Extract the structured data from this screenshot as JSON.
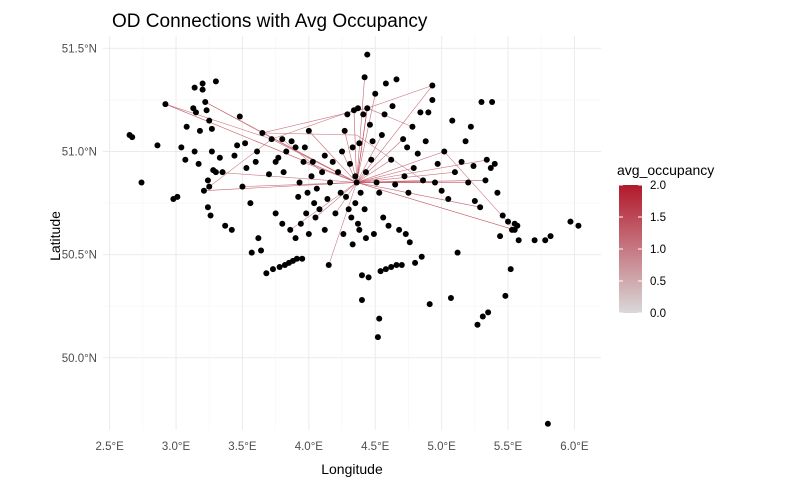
{
  "chart_data": {
    "type": "scatter",
    "title": "OD Connections with Avg Occupancy",
    "xlabel": "Longitude",
    "ylabel": "Latitude",
    "xlim": [
      2.45,
      6.2
    ],
    "ylim": [
      49.65,
      51.56
    ],
    "x_ticks": [
      {
        "value": 2.5,
        "label": "2.5°E"
      },
      {
        "value": 3.0,
        "label": "3.0°E"
      },
      {
        "value": 3.5,
        "label": "3.5°E"
      },
      {
        "value": 4.0,
        "label": "4.0°E"
      },
      {
        "value": 4.5,
        "label": "4.5°E"
      },
      {
        "value": 5.0,
        "label": "5.0°E"
      },
      {
        "value": 5.5,
        "label": "5.5°E"
      },
      {
        "value": 6.0,
        "label": "6.0°E"
      }
    ],
    "y_ticks": [
      {
        "value": 50.0,
        "label": "50.0°N"
      },
      {
        "value": 50.5,
        "label": "50.5°N"
      },
      {
        "value": 51.0,
        "label": "51.0°N"
      },
      {
        "value": 51.5,
        "label": "51.5°N"
      }
    ],
    "grid": true,
    "legend": {
      "title": "avg_occupancy",
      "position": "right",
      "min": 0.0,
      "max": 2.0,
      "ticks": [
        {
          "value": 2.0,
          "label": "2.0"
        },
        {
          "value": 1.5,
          "label": "1.5"
        },
        {
          "value": 1.0,
          "label": "1.0"
        },
        {
          "value": 0.5,
          "label": "0.5"
        },
        {
          "value": 0.0,
          "label": "0.0"
        }
      ],
      "color_low": "#d9d9d9",
      "color_high": "#b2182b"
    },
    "point_color": "#000000",
    "hub": [
      4.36,
      50.85
    ],
    "points": [
      [
        2.65,
        51.08
      ],
      [
        2.67,
        51.07
      ],
      [
        2.74,
        50.85
      ],
      [
        2.86,
        51.03
      ],
      [
        2.92,
        51.23
      ],
      [
        2.98,
        50.77
      ],
      [
        3.01,
        50.78
      ],
      [
        3.04,
        51.02
      ],
      [
        3.07,
        50.96
      ],
      [
        3.08,
        51.12
      ],
      [
        3.13,
        51.21
      ],
      [
        3.14,
        51.0
      ],
      [
        3.14,
        51.31
      ],
      [
        3.15,
        51.19
      ],
      [
        3.17,
        50.94
      ],
      [
        3.18,
        51.1
      ],
      [
        3.2,
        51.33
      ],
      [
        3.2,
        51.3
      ],
      [
        3.21,
        50.81
      ],
      [
        3.22,
        51.24
      ],
      [
        3.23,
        51.2
      ],
      [
        3.24,
        50.86
      ],
      [
        3.24,
        50.73
      ],
      [
        3.25,
        50.83
      ],
      [
        3.25,
        51.15
      ],
      [
        3.26,
        50.69
      ],
      [
        3.27,
        51.0
      ],
      [
        3.27,
        51.11
      ],
      [
        3.28,
        50.91
      ],
      [
        3.3,
        51.34
      ],
      [
        3.3,
        50.9
      ],
      [
        3.33,
        50.97
      ],
      [
        3.35,
        50.9
      ],
      [
        3.37,
        50.64
      ],
      [
        3.42,
        50.62
      ],
      [
        3.44,
        50.98
      ],
      [
        3.46,
        51.03
      ],
      [
        3.48,
        51.17
      ],
      [
        3.5,
        50.83
      ],
      [
        3.52,
        51.04
      ],
      [
        3.53,
        50.92
      ],
      [
        3.56,
        50.75
      ],
      [
        3.57,
        50.51
      ],
      [
        3.6,
        50.95
      ],
      [
        3.61,
        51.0
      ],
      [
        3.62,
        50.58
      ],
      [
        3.64,
        50.52
      ],
      [
        3.65,
        51.09
      ],
      [
        3.68,
        50.41
      ],
      [
        3.7,
        50.89
      ],
      [
        3.72,
        51.06
      ],
      [
        3.73,
        50.43
      ],
      [
        3.75,
        50.95
      ],
      [
        3.75,
        50.7
      ],
      [
        3.77,
        50.97
      ],
      [
        3.78,
        50.44
      ],
      [
        3.8,
        51.06
      ],
      [
        3.8,
        50.65
      ],
      [
        3.81,
        50.9
      ],
      [
        3.82,
        50.45
      ],
      [
        3.83,
        51.0
      ],
      [
        3.85,
        50.46
      ],
      [
        3.86,
        50.62
      ],
      [
        3.87,
        51.05
      ],
      [
        3.88,
        50.47
      ],
      [
        3.9,
        51.02
      ],
      [
        3.9,
        50.58
      ],
      [
        3.91,
        50.48
      ],
      [
        3.92,
        50.78
      ],
      [
        3.93,
        50.85
      ],
      [
        3.94,
        50.65
      ],
      [
        3.95,
        50.48
      ],
      [
        3.96,
        50.95
      ],
      [
        3.97,
        51.02
      ],
      [
        3.98,
        50.7
      ],
      [
        3.99,
        50.8
      ],
      [
        4.0,
        50.6
      ],
      [
        4.0,
        51.1
      ],
      [
        4.02,
        50.88
      ],
      [
        4.03,
        50.95
      ],
      [
        4.04,
        50.75
      ],
      [
        4.05,
        50.68
      ],
      [
        4.06,
        50.82
      ],
      [
        4.08,
        50.72
      ],
      [
        4.1,
        50.9
      ],
      [
        4.12,
        50.98
      ],
      [
        4.12,
        50.62
      ],
      [
        4.14,
        50.77
      ],
      [
        4.15,
        50.45
      ],
      [
        4.16,
        50.85
      ],
      [
        4.18,
        50.95
      ],
      [
        4.2,
        50.7
      ],
      [
        4.22,
        50.9
      ],
      [
        4.24,
        50.8
      ],
      [
        4.25,
        51.0
      ],
      [
        4.26,
        50.6
      ],
      [
        4.27,
        51.1
      ],
      [
        4.28,
        50.78
      ],
      [
        4.29,
        51.18
      ],
      [
        4.3,
        50.72
      ],
      [
        4.31,
        50.94
      ],
      [
        4.32,
        50.68
      ],
      [
        4.33,
        50.55
      ],
      [
        4.33,
        51.02
      ],
      [
        4.34,
        51.2
      ],
      [
        4.35,
        50.75
      ],
      [
        4.35,
        50.88
      ],
      [
        4.36,
        50.85
      ],
      [
        4.37,
        50.65
      ],
      [
        4.37,
        51.21
      ],
      [
        4.38,
        51.04
      ],
      [
        4.38,
        50.62
      ],
      [
        4.39,
        50.8
      ],
      [
        4.4,
        50.4
      ],
      [
        4.4,
        50.28
      ],
      [
        4.41,
        51.18
      ],
      [
        4.42,
        50.72
      ],
      [
        4.42,
        51.36
      ],
      [
        4.43,
        50.58
      ],
      [
        4.43,
        50.9
      ],
      [
        4.44,
        51.47
      ],
      [
        4.44,
        51.21
      ],
      [
        4.45,
        50.39
      ],
      [
        4.46,
        51.13
      ],
      [
        4.47,
        50.96
      ],
      [
        4.48,
        51.05
      ],
      [
        4.49,
        50.6
      ],
      [
        4.5,
        51.28
      ],
      [
        4.51,
        50.85
      ],
      [
        4.52,
        50.1
      ],
      [
        4.53,
        50.19
      ],
      [
        4.53,
        50.8
      ],
      [
        4.54,
        50.42
      ],
      [
        4.55,
        51.08
      ],
      [
        4.56,
        50.68
      ],
      [
        4.57,
        51.18
      ],
      [
        4.58,
        50.43
      ],
      [
        4.58,
        51.33
      ],
      [
        4.6,
        50.64
      ],
      [
        4.62,
        50.96
      ],
      [
        4.62,
        50.44
      ],
      [
        4.63,
        51.22
      ],
      [
        4.65,
        50.84
      ],
      [
        4.66,
        51.35
      ],
      [
        4.66,
        50.45
      ],
      [
        4.68,
        50.62
      ],
      [
        4.7,
        50.45
      ],
      [
        4.71,
        51.06
      ],
      [
        4.72,
        50.88
      ],
      [
        4.73,
        50.6
      ],
      [
        4.74,
        51.02
      ],
      [
        4.75,
        50.8
      ],
      [
        4.76,
        50.56
      ],
      [
        4.78,
        51.12
      ],
      [
        4.79,
        50.92
      ],
      [
        4.8,
        50.46
      ],
      [
        4.82,
        50.99
      ],
      [
        4.84,
        51.19
      ],
      [
        4.85,
        50.49
      ],
      [
        4.86,
        50.86
      ],
      [
        4.88,
        51.05
      ],
      [
        4.9,
        51.19
      ],
      [
        4.91,
        50.26
      ],
      [
        4.93,
        51.32
      ],
      [
        4.93,
        51.25
      ],
      [
        4.95,
        50.85
      ],
      [
        4.97,
        50.94
      ],
      [
        5.0,
        50.81
      ],
      [
        5.02,
        51.0
      ],
      [
        5.05,
        50.77
      ],
      [
        5.07,
        50.29
      ],
      [
        5.08,
        51.15
      ],
      [
        5.1,
        50.9
      ],
      [
        5.12,
        50.51
      ],
      [
        5.15,
        50.95
      ],
      [
        5.18,
        51.05
      ],
      [
        5.2,
        50.85
      ],
      [
        5.22,
        51.12
      ],
      [
        5.24,
        50.93
      ],
      [
        5.25,
        50.76
      ],
      [
        5.27,
        50.16
      ],
      [
        5.29,
        50.73
      ],
      [
        5.3,
        51.24
      ],
      [
        5.31,
        50.2
      ],
      [
        5.33,
        50.86
      ],
      [
        5.34,
        50.96
      ],
      [
        5.35,
        50.22
      ],
      [
        5.37,
        50.92
      ],
      [
        5.38,
        51.24
      ],
      [
        5.4,
        50.94
      ],
      [
        5.42,
        50.8
      ],
      [
        5.44,
        50.59
      ],
      [
        5.46,
        50.69
      ],
      [
        5.48,
        50.3
      ],
      [
        5.5,
        50.66
      ],
      [
        5.52,
        50.43
      ],
      [
        5.53,
        50.62
      ],
      [
        5.55,
        50.65
      ],
      [
        5.57,
        50.64
      ],
      [
        5.58,
        50.57
      ],
      [
        5.7,
        50.57
      ],
      [
        5.78,
        50.57
      ],
      [
        5.8,
        49.68
      ],
      [
        5.82,
        50.59
      ],
      [
        5.97,
        50.66
      ],
      [
        6.03,
        50.64
      ],
      [
        5.55,
        50.62
      ]
    ],
    "connections": [
      [
        [
          4.36,
          50.85
        ],
        [
          2.92,
          51.23
        ],
        1.6
      ],
      [
        [
          4.36,
          50.85
        ],
        [
          3.22,
          51.24
        ],
        1.4
      ],
      [
        [
          4.36,
          50.85
        ],
        [
          3.21,
          50.81
        ],
        1.5
      ],
      [
        [
          4.36,
          50.85
        ],
        [
          3.5,
          50.83
        ],
        1.3
      ],
      [
        [
          4.36,
          50.85
        ],
        [
          3.72,
          51.06
        ],
        1.6
      ],
      [
        [
          4.36,
          50.85
        ],
        [
          3.65,
          51.09
        ],
        1.2
      ],
      [
        [
          4.36,
          50.85
        ],
        [
          4.44,
          51.21
        ],
        1.8
      ],
      [
        [
          4.36,
          50.85
        ],
        [
          4.42,
          51.36
        ],
        1.5
      ],
      [
        [
          4.36,
          50.85
        ],
        [
          4.34,
          51.2
        ],
        1.6
      ],
      [
        [
          4.36,
          50.85
        ],
        [
          4.5,
          51.28
        ],
        1.4
      ],
      [
        [
          4.36,
          50.85
        ],
        [
          4.93,
          51.32
        ],
        1.3
      ],
      [
        [
          4.36,
          50.85
        ],
        [
          5.02,
          51.0
        ],
        1.5
      ],
      [
        [
          4.36,
          50.85
        ],
        [
          5.33,
          50.86
        ],
        1.7
      ],
      [
        [
          4.36,
          50.85
        ],
        [
          5.35,
          50.96
        ],
        1.4
      ],
      [
        [
          4.36,
          50.85
        ],
        [
          5.55,
          50.62
        ],
        1.8
      ],
      [
        [
          4.36,
          50.85
        ],
        [
          5.29,
          50.73
        ],
        1.5
      ],
      [
        [
          4.36,
          50.85
        ],
        [
          4.86,
          50.86
        ],
        1.3
      ],
      [
        [
          4.36,
          50.85
        ],
        [
          4.71,
          51.06
        ],
        1.4
      ],
      [
        [
          4.36,
          50.85
        ],
        [
          4.05,
          50.68
        ],
        1.2
      ],
      [
        [
          4.36,
          50.85
        ],
        [
          3.86,
          50.62
        ],
        1.1
      ],
      [
        [
          4.36,
          50.85
        ],
        [
          4.15,
          50.45
        ],
        1.2
      ],
      [
        [
          4.36,
          50.85
        ],
        [
          4.62,
          50.96
        ],
        1.5
      ],
      [
        [
          4.36,
          50.85
        ],
        [
          4.0,
          51.1
        ],
        1.4
      ],
      [
        [
          4.36,
          50.85
        ],
        [
          4.25,
          51.0
        ],
        1.5
      ],
      [
        [
          4.36,
          50.85
        ],
        [
          4.55,
          51.08
        ],
        1.3
      ],
      [
        [
          4.36,
          50.85
        ],
        [
          3.95,
          50.95
        ],
        1.2
      ],
      [
        [
          4.36,
          50.85
        ],
        [
          4.2,
          50.7
        ],
        1.1
      ],
      [
        [
          4.36,
          50.85
        ],
        [
          5.2,
          50.85
        ],
        1.6
      ],
      [
        [
          4.36,
          50.85
        ],
        [
          4.79,
          50.92
        ],
        1.4
      ],
      [
        [
          4.36,
          50.85
        ],
        [
          5.1,
          50.9
        ],
        1.3
      ],
      [
        [
          4.36,
          50.85
        ],
        [
          4.95,
          50.85
        ],
        1.4
      ],
      [
        [
          4.36,
          50.85
        ],
        [
          3.3,
          50.9
        ],
        1.2
      ],
      [
        [
          4.36,
          50.85
        ],
        [
          4.27,
          51.1
        ],
        1.4
      ],
      [
        [
          3.22,
          51.24
        ],
        [
          3.65,
          51.09
        ],
        1.2
      ],
      [
        [
          3.65,
          51.09
        ],
        [
          4.44,
          51.21
        ],
        1.3
      ],
      [
        [
          2.92,
          51.23
        ],
        [
          3.72,
          51.06
        ],
        1.2
      ],
      [
        [
          3.72,
          51.06
        ],
        [
          4.34,
          51.2
        ],
        1.2
      ],
      [
        [
          4.44,
          51.21
        ],
        [
          4.78,
          51.12
        ],
        1.2
      ],
      [
        [
          4.44,
          51.21
        ],
        [
          4.93,
          51.32
        ],
        1.3
      ],
      [
        [
          3.65,
          51.09
        ],
        [
          4.36,
          51.08
        ],
        1.1
      ],
      [
        [
          3.8,
          51.06
        ],
        [
          4.1,
          50.9
        ],
        1.0
      ],
      [
        [
          5.02,
          51.0
        ],
        [
          5.55,
          50.62
        ],
        1.2
      ],
      [
        [
          4.36,
          51.08
        ],
        [
          4.86,
          50.86
        ],
        1.1
      ],
      [
        [
          4.44,
          51.21
        ],
        [
          4.36,
          50.85
        ],
        1.5
      ],
      [
        [
          3.21,
          50.81
        ],
        [
          3.72,
          51.06
        ],
        1.1
      ]
    ]
  }
}
